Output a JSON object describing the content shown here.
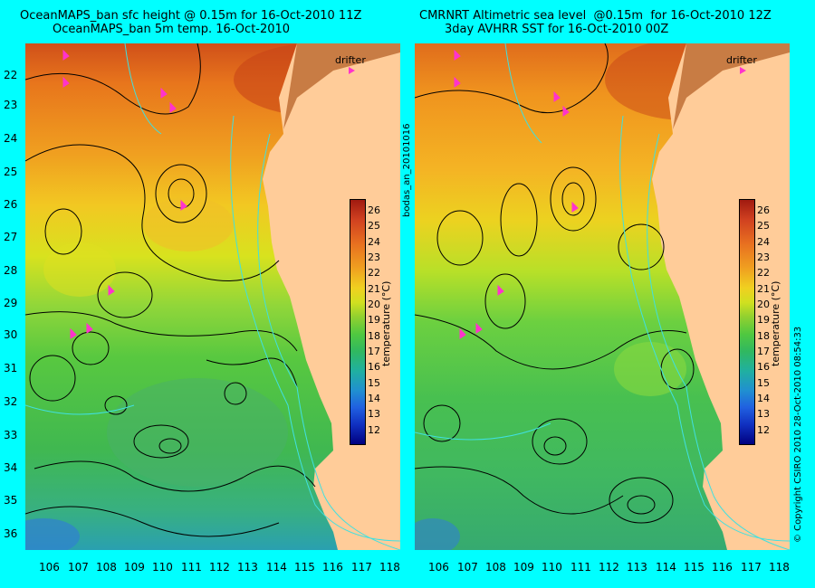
{
  "titles": {
    "left_line1": "OceanMAPS_ban sfc height @ 0.15m for 16-Oct-2010 11Z",
    "left_line2": "OceanMAPS_ban 5m temp. 16-Oct-2010",
    "right_line1": "CMRNRT Altimetric sea level  @0.15m  for 16-Oct-2010 12Z",
    "right_line2": "3day AVHRR SST for 16-Oct-2010 00Z"
  },
  "latitude_labels": [
    "22",
    "23",
    "24",
    "25",
    "26",
    "27",
    "28",
    "29",
    "30",
    "31",
    "32",
    "33",
    "34",
    "35",
    "36"
  ],
  "longitude_labels": [
    "106",
    "107",
    "108",
    "109",
    "110",
    "111",
    "112",
    "113",
    "114",
    "115",
    "116",
    "117",
    "118"
  ],
  "legend": {
    "drifter_label": "drifter",
    "colorbar_ticks": [
      "26",
      "25",
      "24",
      "23",
      "22",
      "21",
      "20",
      "19",
      "18",
      "17",
      "16",
      "15",
      "14",
      "13",
      "12"
    ],
    "colorbar_label": "temperature (°C)"
  },
  "side_text": {
    "run_id": "bodas_an_20101016",
    "copyright": "© Copyright CSIRO 2010   28-Oct-2010 08:54:33"
  },
  "colors": {
    "background": "#00ffff",
    "land": "#ffcc99",
    "drifter": "#ff33cc",
    "contour": "#000000",
    "isobath": "#40e0e0"
  }
}
